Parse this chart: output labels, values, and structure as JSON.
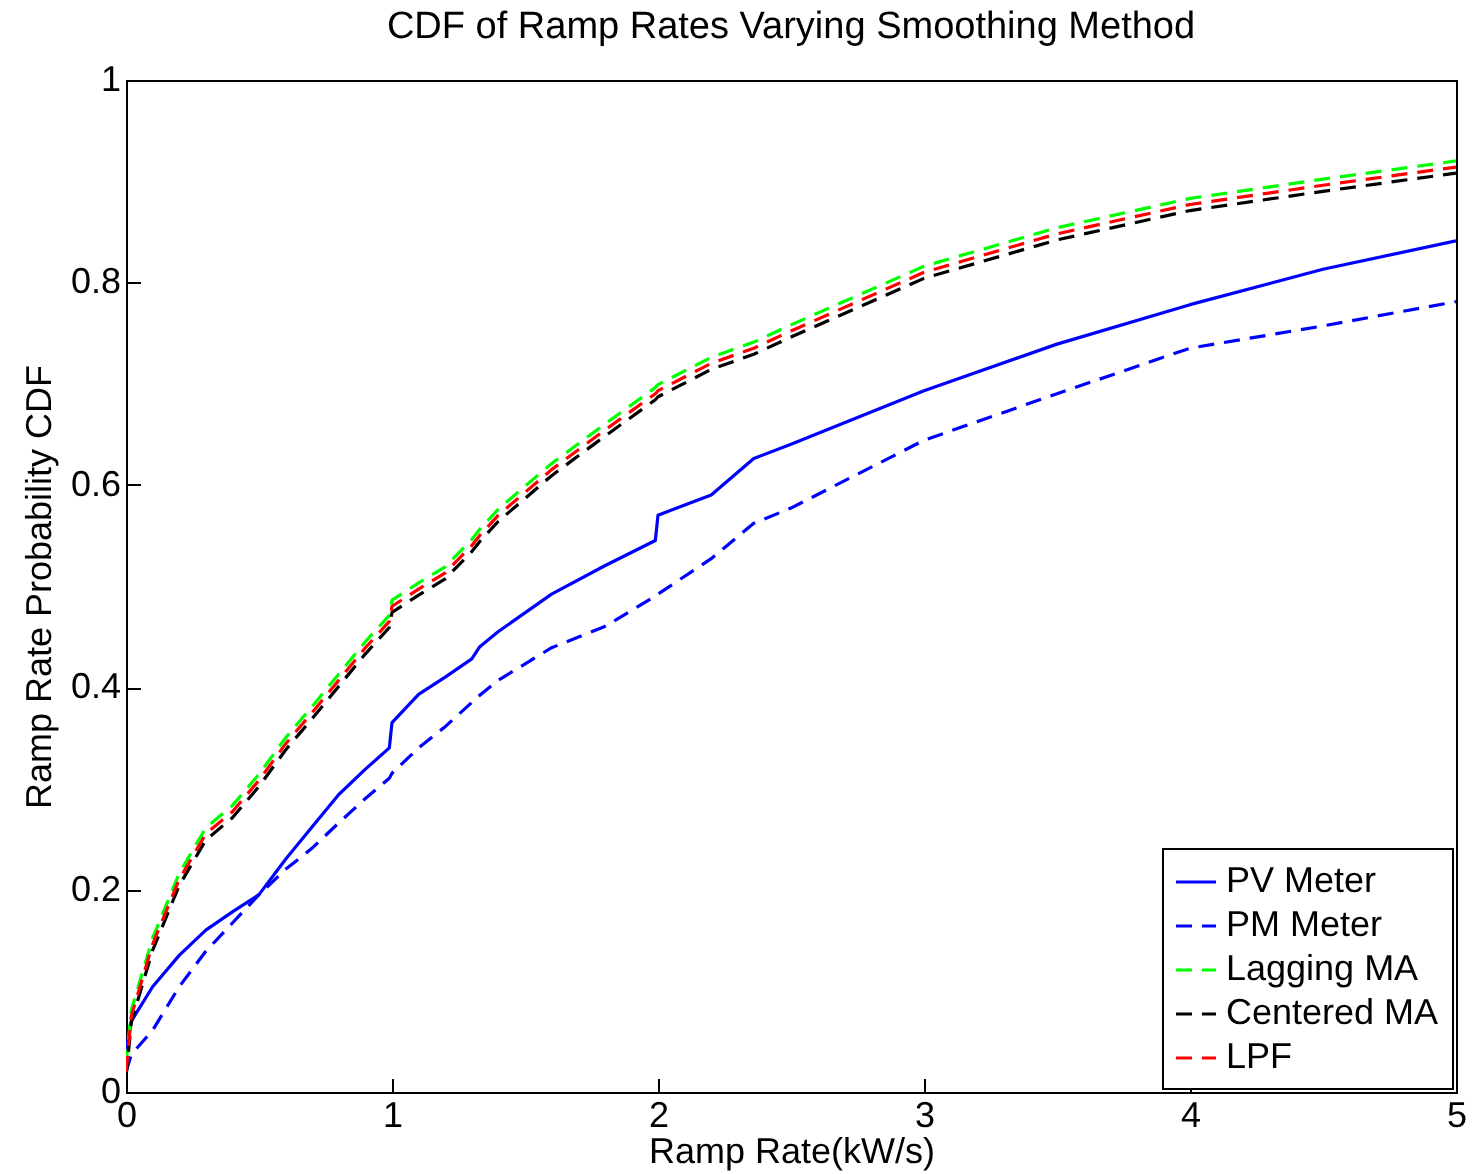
{
  "chart_data": {
    "type": "line",
    "title": "CDF of Ramp Rates Varying Smoothing Method",
    "xlabel": "Ramp Rate(kW/s)",
    "ylabel": "Ramp Rate Probability CDF",
    "xlim": [
      0,
      5
    ],
    "ylim": [
      0,
      1
    ],
    "xticks": [
      0,
      1,
      2,
      3,
      4,
      5
    ],
    "yticks": [
      0,
      0.2,
      0.4,
      0.6,
      0.8,
      1
    ],
    "grid": false,
    "legend": "bottom right",
    "x": [
      0,
      0.02,
      0.1,
      0.2,
      0.3,
      0.4,
      0.5,
      0.6,
      0.7,
      0.8,
      0.9,
      0.99,
      1.0,
      1.1,
      1.2,
      1.3,
      1.33,
      1.4,
      1.6,
      1.8,
      1.99,
      2.0,
      2.2,
      2.36,
      2.5,
      3,
      3.5,
      4,
      4.5,
      5
    ],
    "series": [
      {
        "name": "PV Meter",
        "color": "#0000ff",
        "line_style": "solid",
        "values": [
          0.04,
          0.07,
          0.104,
          0.135,
          0.16,
          0.178,
          0.195,
          0.23,
          0.262,
          0.294,
          0.319,
          0.34,
          0.365,
          0.393,
          0.41,
          0.428,
          0.44,
          0.455,
          0.492,
          0.52,
          0.545,
          0.57,
          0.59,
          0.626,
          0.64,
          0.693,
          0.739,
          0.778,
          0.813,
          0.841
        ]
      },
      {
        "name": "PM Meter",
        "color": "#0000ff",
        "line_style": "dashed",
        "values": [
          0.02,
          0.037,
          0.061,
          0.104,
          0.139,
          0.167,
          0.195,
          0.22,
          0.241,
          0.266,
          0.29,
          0.31,
          0.315,
          0.34,
          0.361,
          0.385,
          0.392,
          0.407,
          0.439,
          0.46,
          0.49,
          0.492,
          0.527,
          0.562,
          0.577,
          0.644,
          0.69,
          0.735,
          0.757,
          0.781
        ]
      },
      {
        "name": "Lagging MA",
        "color": "#00ff00",
        "line_style": "dashed",
        "values": [
          0.026,
          0.081,
          0.152,
          0.216,
          0.261,
          0.283,
          0.314,
          0.35,
          0.381,
          0.413,
          0.445,
          0.471,
          0.486,
          0.503,
          0.519,
          0.546,
          0.556,
          0.576,
          0.621,
          0.66,
          0.696,
          0.699,
          0.726,
          0.741,
          0.758,
          0.816,
          0.854,
          0.883,
          0.902,
          0.92
        ]
      },
      {
        "name": "Centered MA",
        "color": "#000000",
        "line_style": "dashed",
        "values": [
          0.014,
          0.069,
          0.14,
          0.204,
          0.249,
          0.271,
          0.302,
          0.338,
          0.369,
          0.401,
          0.433,
          0.459,
          0.474,
          0.491,
          0.507,
          0.534,
          0.544,
          0.564,
          0.609,
          0.648,
          0.684,
          0.687,
          0.714,
          0.729,
          0.746,
          0.804,
          0.842,
          0.871,
          0.89,
          0.908
        ]
      },
      {
        "name": "LPF",
        "color": "#ff0000",
        "line_style": "dashed",
        "values": [
          0.02,
          0.075,
          0.146,
          0.21,
          0.255,
          0.277,
          0.308,
          0.344,
          0.375,
          0.407,
          0.439,
          0.465,
          0.48,
          0.497,
          0.513,
          0.54,
          0.55,
          0.57,
          0.615,
          0.654,
          0.69,
          0.693,
          0.72,
          0.735,
          0.752,
          0.81,
          0.848,
          0.877,
          0.896,
          0.914
        ]
      }
    ]
  }
}
